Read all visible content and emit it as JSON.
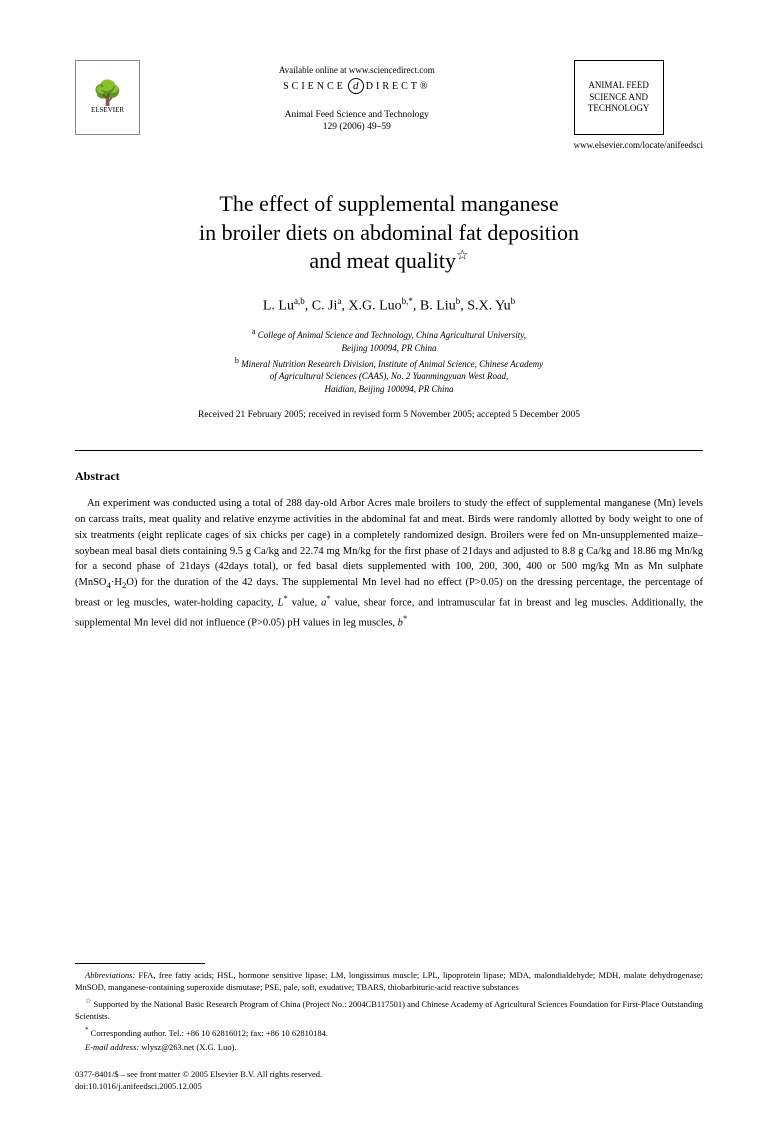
{
  "header": {
    "elsevier_label": "ELSEVIER",
    "available_online": "Available online at www.sciencedirect.com",
    "science_direct_left": "SCIENCE",
    "science_direct_at": "d",
    "science_direct_right": "DIRECT®",
    "journal_name": "Animal Feed Science and Technology",
    "journal_citation": "129 (2006) 49–59",
    "journal_box": "ANIMAL FEED SCIENCE AND TECHNOLOGY",
    "journal_url": "www.elsevier.com/locate/anifeedsci"
  },
  "title": {
    "line1": "The effect of supplemental manganese",
    "line2": "in broiler diets on abdominal fat deposition",
    "line3": "and meat quality",
    "star": "☆"
  },
  "authors": {
    "a1_name": "L. Lu",
    "a1_sup": "a,b",
    "a2_name": "C. Ji",
    "a2_sup": "a",
    "a3_name": "X.G. Luo",
    "a3_sup": "b,",
    "a3_star": "*",
    "a4_name": "B. Liu",
    "a4_sup": "b",
    "a5_name": "S.X. Yu",
    "a5_sup": "b"
  },
  "affiliations": {
    "a_sup": "a",
    "a_line1": " College of Animal Science and Technology, China Agricultural University,",
    "a_line2": "Beijing 100094, PR China",
    "b_sup": "b",
    "b_line1": " Mineral Nutrition Research Division, Institute of Animal Science, Chinese Academy",
    "b_line2": "of Agricultural Sciences (CAAS), No. 2 Yuanmingyuan West Road,",
    "b_line3": "Haidian, Beijing 100094, PR China"
  },
  "dates": "Received 21 February 2005; received in revised form 5 November 2005; accepted 5 December 2005",
  "abstract": {
    "heading": "Abstract",
    "body_part1": "An experiment was conducted using a total of 288 day-old Arbor Acres male broilers to study the effect of supplemental manganese (Mn) levels on carcass traits, meat quality and relative enzyme activities in the abdominal fat and meat. Birds were randomly allotted by body weight to one of six treatments (eight replicate cages of six chicks per cage) in a completely randomized design. Broilers were fed on Mn-unsupplemented maize–soybean meal basal diets containing 9.5 g Ca/kg and 22.74 mg Mn/kg for the first phase of 21days and adjusted to 8.8 g Ca/kg and 18.86 mg Mn/kg for a second phase of 21days (42days total), or fed basal diets supplemented with 100, 200, 300, 400 or 500 mg/kg Mn as Mn sulphate (MnSO",
    "sub1": "4",
    "body_part2": "·H",
    "sub2": "2",
    "body_part3": "O) for the duration of the 42 days. The supplemental Mn level had no effect (P>0.05) on the dressing percentage, the percentage of breast or leg muscles, water-holding capacity, ",
    "L_star": "L",
    "body_part4": " value, ",
    "a_star": "a",
    "body_part5": " value, shear force, and intramuscular fat in breast and leg muscles. Additionally, the supplemental Mn level did not influence (P>0.05) pH values in leg muscles, ",
    "b_star": "b"
  },
  "footnotes": {
    "abbrev_label": "Abbreviations:",
    "abbrev_text": " FFA, free fatty acids; HSL, hormone sensitive lipase; LM, longissimus muscle; LPL, lipoprotein lipase; MDA, malondialdehyde; MDH, malate dehydrogenase; MnSOD, manganese-containing superoxide dismutase; PSE, pale, soft, exudative; TBARS, thiobarbituric-acid reactive substances",
    "star_sym": "☆",
    "star_text": " Supported by the National Basic Research Program of China (Project No.: 2004CB117501) and Chinese Academy of Agricultural Sciences Foundation for First-Place Outstanding Scientists.",
    "corr_sym": "*",
    "corr_text": " Corresponding author. Tel.: +86 10 62816012; fax: +86 10 62810184.",
    "email_label": "E-mail address:",
    "email_text": " wlysz@263.net (X.G. Luo)."
  },
  "copyright": {
    "line1": "0377-8401/$ – see front matter © 2005 Elsevier B.V. All rights reserved.",
    "line2": "doi:10.1016/j.anifeedsci.2005.12.005"
  }
}
